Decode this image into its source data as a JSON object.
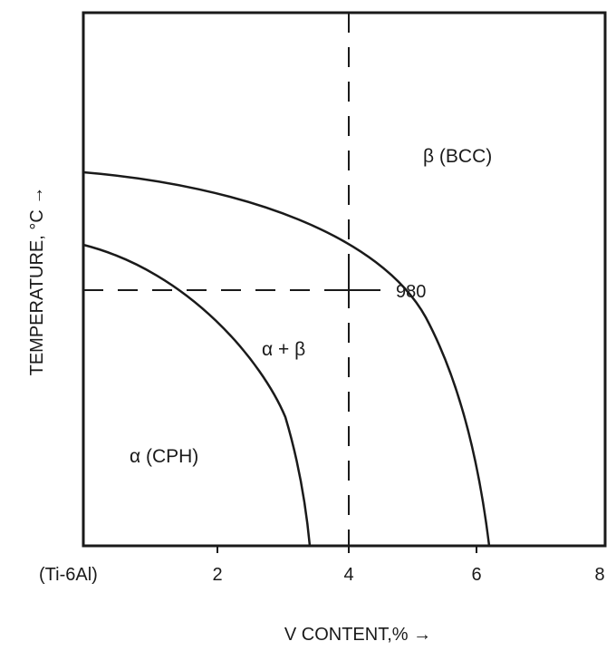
{
  "diagram": {
    "y_axis_title": "TEMPERATURE, °C →",
    "x_axis_title": "V CONTENT,% →",
    "x_ticks": [
      "(Ti-6Al)",
      "2",
      "4",
      "6",
      "8"
    ],
    "regions": {
      "beta": "β (BCC)",
      "alpha_beta": "α + β",
      "alpha": "α (CPH)"
    },
    "marker_temperature": "980",
    "marker_v_content": 4
  },
  "colors": {
    "ink": "#1a1a1a",
    "background": "#ffffff"
  }
}
